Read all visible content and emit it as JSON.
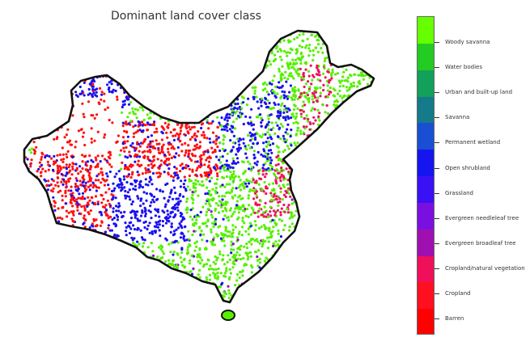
{
  "title": "Dominant land cover class",
  "legend": {
    "classes": [
      {
        "label": "Woody savanna",
        "color": "#66ff00"
      },
      {
        "label": "Water bodies",
        "color": "#22cc22"
      },
      {
        "label": "Urban and built-up land",
        "color": "#13a05a"
      },
      {
        "label": "Savanna",
        "color": "#157a8a"
      },
      {
        "label": "Permanent wetland",
        "color": "#1a4fd4"
      },
      {
        "label": "Open shrubland",
        "color": "#1515f0"
      },
      {
        "label": "Grassland",
        "color": "#3a10f5"
      },
      {
        "label": "Evergreen needleleaf tree",
        "color": "#7a10e0"
      },
      {
        "label": "Evergreen broadleaf tree",
        "color": "#a010b0"
      },
      {
        "label": "Cropland/natural vegetation",
        "color": "#f0105a"
      },
      {
        "label": "Cropland",
        "color": "#ff1020"
      },
      {
        "label": "Barren",
        "color": "#ff0000"
      }
    ]
  },
  "map_colors": {
    "outline": "#111111",
    "land_base": "#ffffff",
    "green": "#55f000",
    "blue": "#1a10f0",
    "red": "#ff1010",
    "pink": "#f01060",
    "purple": "#8a10c8"
  }
}
